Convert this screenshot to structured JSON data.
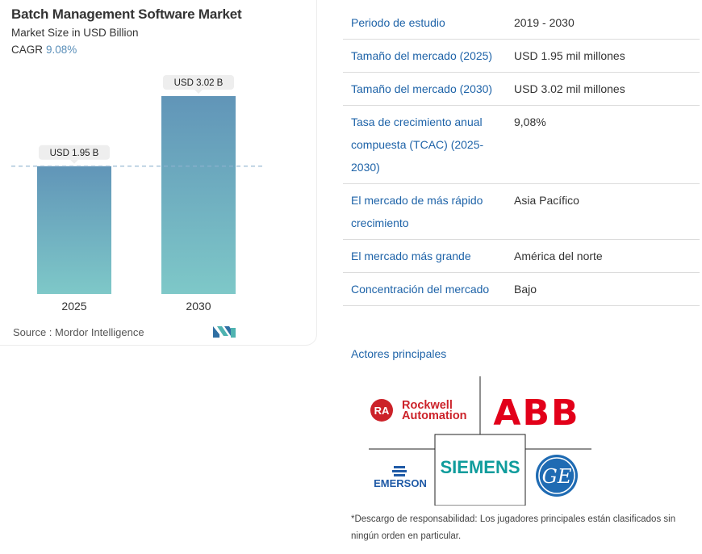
{
  "chart_data": {
    "type": "bar",
    "title": "Batch Management Software Market",
    "subtitle": "Market Size in USD Billion",
    "cagr_label": "CAGR",
    "cagr_value": "9.08%",
    "categories": [
      "2025",
      "2030"
    ],
    "values": [
      1.95,
      3.02
    ],
    "data_labels": [
      "USD 1.95 B",
      "USD 3.02 B"
    ],
    "ylim": [
      0,
      3.02
    ],
    "bar_color_top": "#6195b8",
    "bar_color_bottom": "#7ec8c8",
    "reference_line_color": "#8fb3cf"
  },
  "source": {
    "label": "Source :",
    "name": "Mordor Intelligence"
  },
  "table": {
    "rows": [
      {
        "label": "Periodo de estudio",
        "value": "2019 - 2030"
      },
      {
        "label": "Tamaño del mercado (2025)",
        "value": "USD 1.95 mil millones"
      },
      {
        "label": "Tamaño del mercado (2030)",
        "value": "USD 3.02 mil millones"
      },
      {
        "label": "Tasa de crecimiento anual compuesta (TCAC) (2025-2030)",
        "value": "9,08%"
      },
      {
        "label": "El mercado de más rápido crecimiento",
        "value": "Asia Pacífico"
      },
      {
        "label": "El mercado más grande",
        "value": "América del norte"
      },
      {
        "label": "Concentración del mercado",
        "value": "Bajo"
      }
    ]
  },
  "players": {
    "title": "Actores principales",
    "logos": {
      "rockwell": {
        "badge": "RA",
        "line1": "Rockwell",
        "line2": "Automation"
      },
      "abb": "ABB",
      "emerson": "EMERSON",
      "siemens": "SIEMENS",
      "ge": "GE"
    }
  },
  "disclaimer": "*Descargo de responsabilidad: Los jugadores principales están clasificados sin ningún orden en particular."
}
